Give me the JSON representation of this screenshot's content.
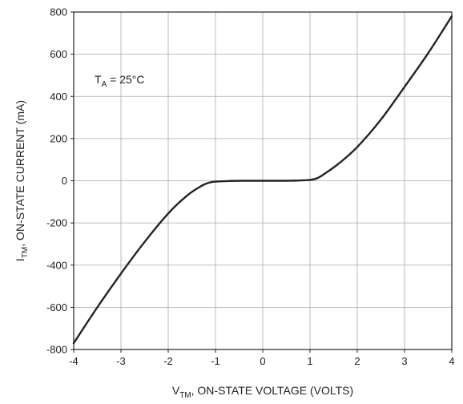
{
  "chart_data": {
    "type": "line",
    "xlabel": {
      "main": "V",
      "sub": "TM",
      "rest": ", ON-STATE VOLTAGE (VOLTS)"
    },
    "ylabel": {
      "main": "I",
      "sub": "TM",
      "rest": ", ON-STATE CURRENT (mA)"
    },
    "annotation": {
      "main": "T",
      "sub": "A",
      "rest": " = 25°C"
    },
    "xlim": [
      -4,
      4
    ],
    "ylim": [
      -800,
      800
    ],
    "xticks": [
      -4,
      -3,
      -2,
      -1,
      0,
      1,
      2,
      3,
      4
    ],
    "yticks": [
      -800,
      -600,
      -400,
      -200,
      0,
      200,
      400,
      600,
      800
    ],
    "xtick_labels": [
      "-4",
      "-3",
      "-2",
      "-1",
      "0",
      "1",
      "2",
      "3",
      "4"
    ],
    "ytick_labels": [
      "-800",
      "-600",
      "-400",
      "-200",
      "0",
      "200",
      "400",
      "600",
      "800"
    ],
    "grid": true,
    "series": [
      {
        "color": "#222222",
        "points": [
          [
            -4,
            -770
          ],
          [
            -3.5,
            -600
          ],
          [
            -3,
            -440
          ],
          [
            -2.5,
            -290
          ],
          [
            -2,
            -155
          ],
          [
            -1.6,
            -70
          ],
          [
            -1.3,
            -25
          ],
          [
            -1.15,
            -10
          ],
          [
            -1,
            -4
          ],
          [
            -0.7,
            -1
          ],
          [
            -0.4,
            0
          ],
          [
            0,
            0
          ],
          [
            0.4,
            0
          ],
          [
            0.7,
            1
          ],
          [
            1,
            4
          ],
          [
            1.15,
            12
          ],
          [
            1.3,
            32
          ],
          [
            1.6,
            80
          ],
          [
            2,
            160
          ],
          [
            2.5,
            290
          ],
          [
            3,
            445
          ],
          [
            3.5,
            605
          ],
          [
            4,
            780
          ]
        ]
      }
    ]
  }
}
